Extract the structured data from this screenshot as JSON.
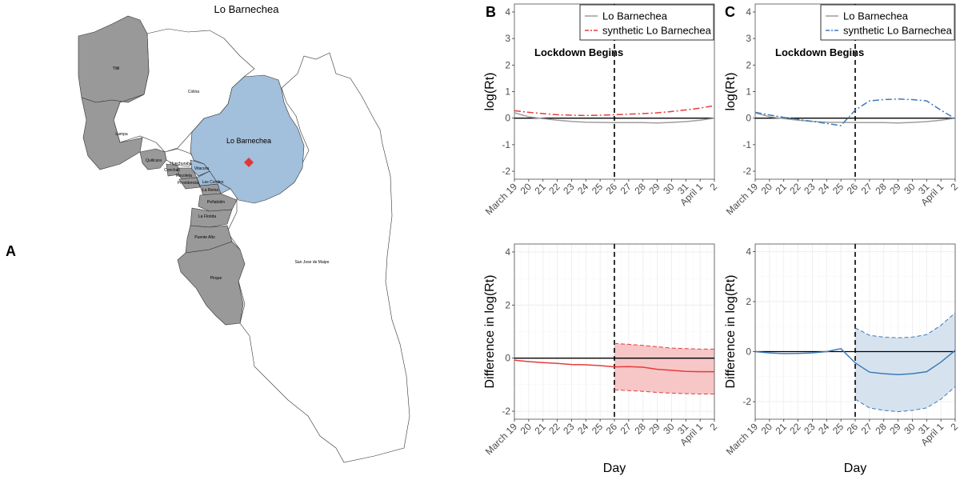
{
  "colors": {
    "map_grey": "#999999",
    "map_blue": "#a2bfdb",
    "marker_red": "#e0373a",
    "red": "#e63c3c",
    "blue": "#3d7ab8",
    "real_grey": "#9e9e9e",
    "red_band": "#f7c6c6",
    "blue_band": "#d6e3ef"
  },
  "panels": {
    "A": {
      "letter": "A",
      "title": "Lo Barnechea",
      "communes": [
        {
          "id": "tiltil",
          "label": "Tiltil",
          "fill": "grey"
        },
        {
          "id": "colina",
          "label": "Colina",
          "fill": "white"
        },
        {
          "id": "lampa",
          "label": "Lampa",
          "fill": "grey"
        },
        {
          "id": "quilicura",
          "label": "Quilicura",
          "fill": "grey"
        },
        {
          "id": "huechuraba",
          "label": "Huechuraba",
          "fill": "white"
        },
        {
          "id": "conchali",
          "label": "Conchalí",
          "fill": "grey"
        },
        {
          "id": "recoleta",
          "label": "Recoleta",
          "fill": "grey"
        },
        {
          "id": "providencia",
          "label": "Providencia",
          "fill": "grey"
        },
        {
          "id": "vitacura",
          "label": "Vitacura",
          "fill": "blue"
        },
        {
          "id": "las-condes",
          "label": "Las Condes",
          "fill": "blue"
        },
        {
          "id": "la-reina",
          "label": "La Reina",
          "fill": "grey"
        },
        {
          "id": "penalolen",
          "label": "Peñalolén",
          "fill": "grey"
        },
        {
          "id": "la-florida",
          "label": "La Florida",
          "fill": "grey"
        },
        {
          "id": "puente-alto",
          "label": "Puente Alto",
          "fill": "grey"
        },
        {
          "id": "pirque",
          "label": "Pirque",
          "fill": "grey"
        },
        {
          "id": "lo-barnechea",
          "label": "Lo Barnechea",
          "fill": "blue"
        },
        {
          "id": "san-jose-de-maipo",
          "label": "San Jose de Maipo",
          "fill": "white"
        }
      ]
    },
    "B": {
      "letter": "B"
    },
    "C": {
      "letter": "C"
    }
  },
  "chart_data": [
    {
      "id": "B-top",
      "type": "line",
      "panel": "B",
      "ylabel": "log(Rt)",
      "xlabel": "",
      "ylim": [
        -2.3,
        4.3
      ],
      "yticks": [
        -2,
        -1,
        0,
        1,
        2,
        3,
        4
      ],
      "x": [
        0,
        1,
        2,
        3,
        4,
        5,
        6,
        7,
        8,
        9,
        10,
        11,
        12,
        13,
        14
      ],
      "x_tick_labels": [
        "March 19",
        "20",
        "21",
        "22",
        "23",
        "24",
        "25",
        "26",
        "27",
        "28",
        "29",
        "30",
        "31",
        "April 1",
        "2"
      ],
      "legend": [
        "Lo Barnechea",
        "synthetic Lo Barnechea"
      ],
      "annotation": "Lockdown Begins",
      "vline_x": 7,
      "hline_y": 0,
      "series": [
        {
          "name": "Lo Barnechea",
          "style": "solid",
          "color": "grey",
          "values": [
            0.2,
            0.05,
            -0.02,
            -0.08,
            -0.12,
            -0.15,
            -0.16,
            -0.17,
            -0.17,
            -0.17,
            -0.18,
            -0.16,
            -0.13,
            -0.08,
            0.0
          ]
        },
        {
          "name": "synthetic Lo Barnechea",
          "style": "dashdot",
          "color": "red",
          "values": [
            0.28,
            0.22,
            0.17,
            0.13,
            0.11,
            0.1,
            0.11,
            0.13,
            0.15,
            0.17,
            0.2,
            0.25,
            0.31,
            0.38,
            0.47
          ]
        }
      ]
    },
    {
      "id": "C-top",
      "type": "line",
      "panel": "C",
      "ylabel": "log(Rt)",
      "xlabel": "",
      "ylim": [
        -2.3,
        4.3
      ],
      "yticks": [
        -2,
        -1,
        0,
        1,
        2,
        3,
        4
      ],
      "x": [
        0,
        1,
        2,
        3,
        4,
        5,
        6,
        7,
        8,
        9,
        10,
        11,
        12,
        13,
        14
      ],
      "x_tick_labels": [
        "March 19",
        "20",
        "21",
        "22",
        "23",
        "24",
        "25",
        "26",
        "27",
        "28",
        "29",
        "30",
        "31",
        "April 1",
        "2"
      ],
      "legend": [
        "Lo Barnechea",
        "synthetic Lo Barnechea"
      ],
      "annotation": "Lockdown Begins",
      "vline_x": 7,
      "hline_y": 0,
      "series": [
        {
          "name": "Lo Barnechea",
          "style": "solid",
          "color": "grey",
          "values": [
            0.2,
            0.05,
            -0.02,
            -0.08,
            -0.12,
            -0.15,
            -0.16,
            -0.17,
            -0.17,
            -0.17,
            -0.18,
            -0.16,
            -0.13,
            -0.08,
            0.0
          ]
        },
        {
          "name": "synthetic Lo Barnechea",
          "style": "dashdot",
          "color": "blue",
          "values": [
            0.22,
            0.12,
            0.03,
            -0.05,
            -0.12,
            -0.2,
            -0.28,
            0.3,
            0.65,
            0.7,
            0.72,
            0.7,
            0.65,
            0.3,
            -0.02
          ]
        }
      ]
    },
    {
      "id": "B-bottom",
      "type": "line",
      "panel": "B",
      "ylabel": "Difference in log(Rt)",
      "xlabel": "Day",
      "ylim": [
        -2.3,
        4.3
      ],
      "yticks": [
        -2,
        0,
        2,
        4
      ],
      "x": [
        0,
        1,
        2,
        3,
        4,
        5,
        6,
        7,
        8,
        9,
        10,
        11,
        12,
        13,
        14
      ],
      "x_tick_labels": [
        "March 19",
        "20",
        "21",
        "22",
        "23",
        "24",
        "25",
        "26",
        "27",
        "28",
        "29",
        "30",
        "31",
        "April 1",
        "2"
      ],
      "vline_x": 7,
      "hline_y": 0,
      "band_color": "red",
      "series": [
        {
          "name": "difference",
          "style": "solid",
          "color": "red",
          "values": [
            -0.08,
            -0.13,
            -0.17,
            -0.2,
            -0.24,
            -0.25,
            -0.28,
            -0.33,
            -0.32,
            -0.34,
            -0.42,
            -0.46,
            -0.5,
            -0.51,
            -0.51
          ]
        },
        {
          "name": "upper bound",
          "style": "dashed",
          "color": "red",
          "x": [
            7,
            8,
            9,
            10,
            11,
            12,
            13,
            14
          ],
          "values": [
            0.55,
            0.52,
            0.48,
            0.43,
            0.38,
            0.36,
            0.34,
            0.34
          ]
        },
        {
          "name": "lower bound",
          "style": "dashed",
          "color": "red",
          "x": [
            7,
            8,
            9,
            10,
            11,
            12,
            13,
            14
          ],
          "values": [
            -1.2,
            -1.22,
            -1.25,
            -1.29,
            -1.32,
            -1.34,
            -1.35,
            -1.35
          ]
        }
      ]
    },
    {
      "id": "C-bottom",
      "type": "line",
      "panel": "C",
      "ylabel": "Difference in log(Rt)",
      "xlabel": "Day",
      "ylim": [
        -2.7,
        4.3
      ],
      "yticks": [
        -2,
        0,
        2,
        4
      ],
      "x": [
        0,
        1,
        2,
        3,
        4,
        5,
        6,
        7,
        8,
        9,
        10,
        11,
        12,
        13,
        14
      ],
      "x_tick_labels": [
        "March 19",
        "20",
        "21",
        "22",
        "23",
        "24",
        "25",
        "26",
        "27",
        "28",
        "29",
        "30",
        "31",
        "April 1",
        "2"
      ],
      "vline_x": 7,
      "hline_y": 0,
      "band_color": "blue",
      "series": [
        {
          "name": "difference",
          "style": "solid",
          "color": "blue",
          "values": [
            0.0,
            -0.05,
            -0.08,
            -0.07,
            -0.05,
            0.0,
            0.12,
            -0.45,
            -0.82,
            -0.88,
            -0.92,
            -0.88,
            -0.8,
            -0.42,
            0.05
          ]
        },
        {
          "name": "upper bound",
          "style": "dashed",
          "color": "blue",
          "x": [
            7,
            8,
            9,
            10,
            11,
            12,
            13,
            14
          ],
          "values": [
            0.95,
            0.65,
            0.58,
            0.55,
            0.58,
            0.68,
            1.05,
            1.55
          ]
        },
        {
          "name": "lower bound",
          "style": "dashed",
          "color": "blue",
          "x": [
            7,
            8,
            9,
            10,
            11,
            12,
            13,
            14
          ],
          "values": [
            -1.9,
            -2.25,
            -2.35,
            -2.4,
            -2.35,
            -2.25,
            -1.9,
            -1.4
          ]
        }
      ]
    }
  ]
}
